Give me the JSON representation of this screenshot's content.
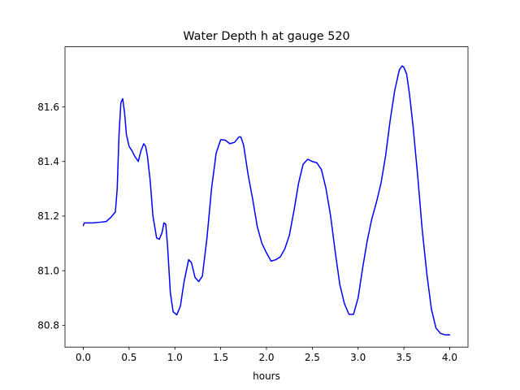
{
  "chart_data": {
    "type": "line",
    "title": "Water Depth h at gauge 520",
    "xlabel": "hours",
    "ylabel": "",
    "xlim": [
      -0.2,
      4.2
    ],
    "ylim": [
      80.72,
      81.82
    ],
    "xticks": [
      0.0,
      0.5,
      1.0,
      1.5,
      2.0,
      2.5,
      3.0,
      3.5,
      4.0
    ],
    "xtick_labels": [
      "0.0",
      "0.5",
      "1.0",
      "1.5",
      "2.0",
      "2.5",
      "3.0",
      "3.5",
      "4.0"
    ],
    "yticks": [
      80.8,
      81.0,
      81.2,
      81.4,
      81.6
    ],
    "ytick_labels": [
      "80.8",
      "81.0",
      "81.2",
      "81.4",
      "81.6"
    ],
    "grid": false,
    "series": [
      {
        "color": "#0000ff",
        "x": [
          0.0,
          0.01,
          0.1,
          0.2,
          0.25,
          0.3,
          0.35,
          0.37,
          0.39,
          0.41,
          0.43,
          0.45,
          0.47,
          0.5,
          0.53,
          0.56,
          0.6,
          0.63,
          0.66,
          0.68,
          0.7,
          0.73,
          0.76,
          0.8,
          0.83,
          0.86,
          0.88,
          0.9,
          0.92,
          0.95,
          0.98,
          1.02,
          1.06,
          1.1,
          1.15,
          1.18,
          1.22,
          1.26,
          1.3,
          1.35,
          1.4,
          1.45,
          1.5,
          1.55,
          1.6,
          1.65,
          1.7,
          1.72,
          1.75,
          1.8,
          1.85,
          1.9,
          1.95,
          2.0,
          2.05,
          2.1,
          2.15,
          2.2,
          2.25,
          2.3,
          2.35,
          2.4,
          2.45,
          2.5,
          2.55,
          2.6,
          2.65,
          2.7,
          2.75,
          2.8,
          2.85,
          2.9,
          2.95,
          3.0,
          3.05,
          3.1,
          3.15,
          3.2,
          3.25,
          3.3,
          3.35,
          3.4,
          3.45,
          3.48,
          3.5,
          3.53,
          3.56,
          3.6,
          3.65,
          3.7,
          3.75,
          3.8,
          3.85,
          3.9,
          3.95,
          4.0
        ],
        "y": [
          81.165,
          81.175,
          81.175,
          81.178,
          81.18,
          81.195,
          81.215,
          81.3,
          81.5,
          81.615,
          81.63,
          81.58,
          81.5,
          81.455,
          81.44,
          81.42,
          81.4,
          81.44,
          81.465,
          81.455,
          81.42,
          81.33,
          81.2,
          81.12,
          81.115,
          81.14,
          81.175,
          81.17,
          81.09,
          80.92,
          80.85,
          80.838,
          80.87,
          80.96,
          81.04,
          81.03,
          80.975,
          80.96,
          80.98,
          81.12,
          81.3,
          81.43,
          81.48,
          81.478,
          81.465,
          81.47,
          81.49,
          81.49,
          81.46,
          81.35,
          81.26,
          81.16,
          81.1,
          81.065,
          81.035,
          81.04,
          81.05,
          81.08,
          81.13,
          81.22,
          81.32,
          81.39,
          81.408,
          81.4,
          81.395,
          81.37,
          81.3,
          81.2,
          81.07,
          80.95,
          80.88,
          80.84,
          80.84,
          80.9,
          81.01,
          81.11,
          81.19,
          81.25,
          81.32,
          81.42,
          81.55,
          81.66,
          81.735,
          81.75,
          81.745,
          81.72,
          81.65,
          81.53,
          81.35,
          81.15,
          80.99,
          80.86,
          80.79,
          80.77,
          80.765,
          80.765
        ]
      }
    ]
  }
}
